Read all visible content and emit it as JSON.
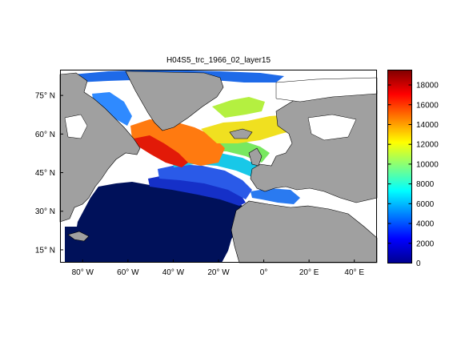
{
  "title": "H04S5_trc_1966_02_layer15",
  "map": {
    "lon_range": [
      -90,
      50
    ],
    "lat_range": [
      10,
      85
    ],
    "lat_ticks": [
      {
        "value": 75,
        "label": "75° N"
      },
      {
        "value": 60,
        "label": "60° N"
      },
      {
        "value": 45,
        "label": "45° N"
      },
      {
        "value": 30,
        "label": "30° N"
      },
      {
        "value": 15,
        "label": "15° N"
      }
    ],
    "lon_ticks": [
      {
        "value": -80,
        "label": "80° W"
      },
      {
        "value": -60,
        "label": "60° W"
      },
      {
        "value": -40,
        "label": "40° W"
      },
      {
        "value": -20,
        "label": "20° W"
      },
      {
        "value": 0,
        "label": "0°"
      },
      {
        "value": 20,
        "label": "20° E"
      },
      {
        "value": 40,
        "label": "40° E"
      }
    ],
    "land_color": "#a0a0a0",
    "missing_color": "#ffffff"
  },
  "colorbar": {
    "min": 0,
    "max": 19500,
    "ticks": [
      0,
      2000,
      4000,
      6000,
      8000,
      10000,
      12000,
      14000,
      16000,
      18000
    ],
    "colormap": "jet"
  }
}
